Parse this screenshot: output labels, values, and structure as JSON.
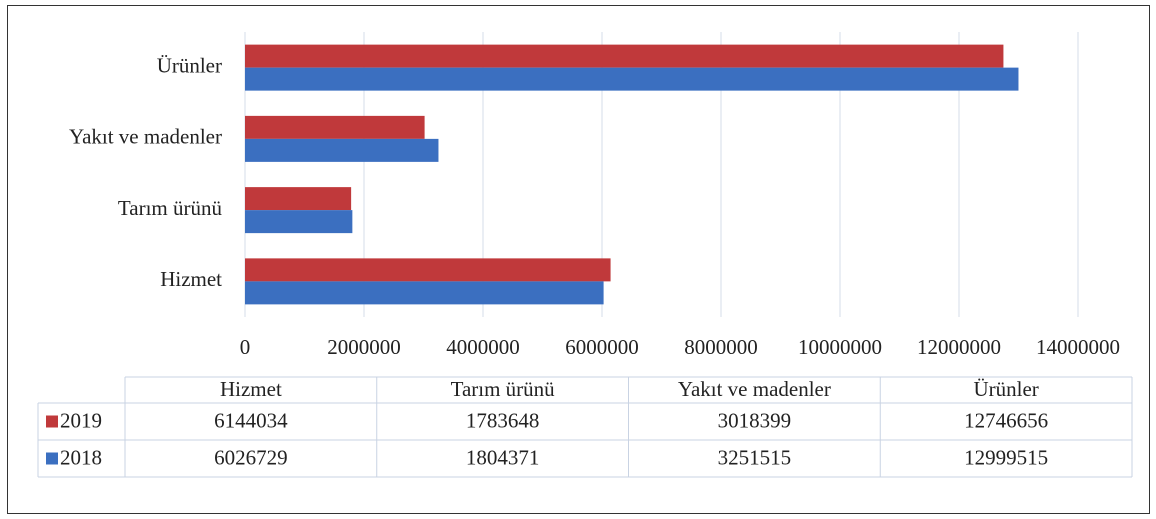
{
  "chart_data": {
    "type": "barh",
    "categories": [
      "Hizmet",
      "Tarım ürünü",
      "Yakıt ve madenler",
      "Ürünler"
    ],
    "series": [
      {
        "name": "2019",
        "color": "#c0393b",
        "values": [
          6144034,
          1783648,
          3018399,
          12746656
        ]
      },
      {
        "name": "2018",
        "color": "#3b6fc0",
        "values": [
          6026729,
          1804371,
          3251515,
          12999515
        ]
      }
    ],
    "xlim": [
      0,
      14000000
    ],
    "xticks": [
      0,
      2000000,
      4000000,
      6000000,
      8000000,
      10000000,
      12000000,
      14000000
    ],
    "grid": true,
    "data_table": true
  }
}
